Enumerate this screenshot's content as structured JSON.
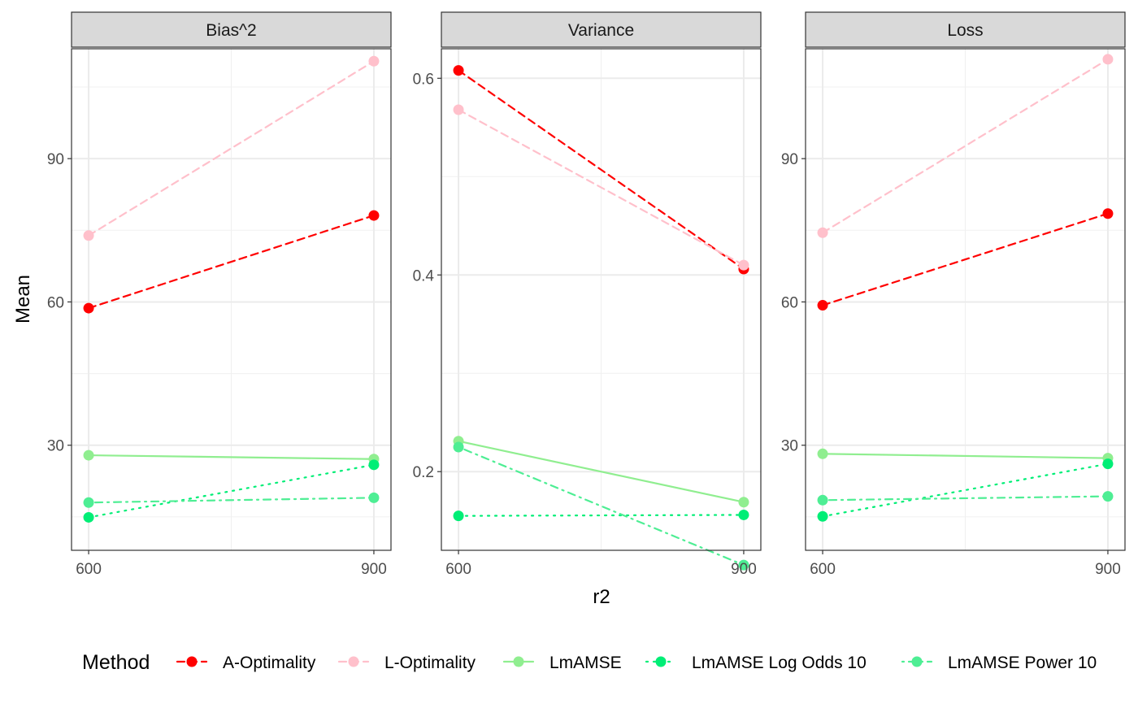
{
  "chart_data": {
    "type": "line",
    "xlabel": "r2",
    "ylabel": "Mean",
    "x": [
      600,
      900
    ],
    "legend": {
      "title": "Method",
      "position": "bottom"
    },
    "series_styles": [
      {
        "name": "A-Optimality",
        "color": "#ff0000",
        "dash": "dashed"
      },
      {
        "name": "L-Optimality",
        "color": "#ffc0cb",
        "dash": "dashed"
      },
      {
        "name": "LmAMSE",
        "color": "#90ee90",
        "dash": "solid"
      },
      {
        "name": "LmAMSE Log Odds 10",
        "color": "#00ee76",
        "dash": "dotted"
      },
      {
        "name": "LmAMSE Power 10",
        "color": "#4eee94",
        "dash": "dotdash"
      }
    ],
    "panels": [
      {
        "title": "Bias^2",
        "ylim": [
          8,
          113
        ],
        "yticks": [
          30,
          60,
          90
        ],
        "ylabels": [
          "30",
          "60",
          "90"
        ],
        "series": [
          {
            "name": "A-Optimality",
            "values": [
              58.7,
              78.1
            ]
          },
          {
            "name": "L-Optimality",
            "values": [
              73.9,
              110.4
            ]
          },
          {
            "name": "LmAMSE",
            "values": [
              27.9,
              27.1
            ]
          },
          {
            "name": "LmAMSE Log Odds 10",
            "values": [
              14.9,
              25.9
            ]
          },
          {
            "name": "LmAMSE Power 10",
            "values": [
              18.0,
              19.0
            ]
          }
        ]
      },
      {
        "title": "Variance",
        "ylim": [
          0.12,
          0.63
        ],
        "yticks": [
          0.2,
          0.4,
          0.6
        ],
        "ylabels": [
          "0.2",
          "0.4",
          "0.6"
        ],
        "series": [
          {
            "name": "A-Optimality",
            "values": [
              0.608,
              0.406
            ]
          },
          {
            "name": "L-Optimality",
            "values": [
              0.568,
              0.41
            ]
          },
          {
            "name": "LmAMSE",
            "values": [
              0.231,
              0.169
            ]
          },
          {
            "name": "LmAMSE Log Odds 10",
            "values": [
              0.155,
              0.156
            ]
          },
          {
            "name": "LmAMSE Power 10",
            "values": [
              0.225,
              0.105
            ]
          }
        ]
      },
      {
        "title": "Loss",
        "ylim": [
          8,
          113
        ],
        "yticks": [
          30,
          60,
          90
        ],
        "ylabels": [
          "30",
          "60",
          "90"
        ],
        "series": [
          {
            "name": "A-Optimality",
            "values": [
              59.3,
              78.5
            ]
          },
          {
            "name": "L-Optimality",
            "values": [
              74.5,
              110.8
            ]
          },
          {
            "name": "LmAMSE",
            "values": [
              28.2,
              27.3
            ]
          },
          {
            "name": "LmAMSE Log Odds 10",
            "values": [
              15.1,
              26.1
            ]
          },
          {
            "name": "LmAMSE Power 10",
            "values": [
              18.5,
              19.3
            ]
          }
        ]
      }
    ]
  }
}
